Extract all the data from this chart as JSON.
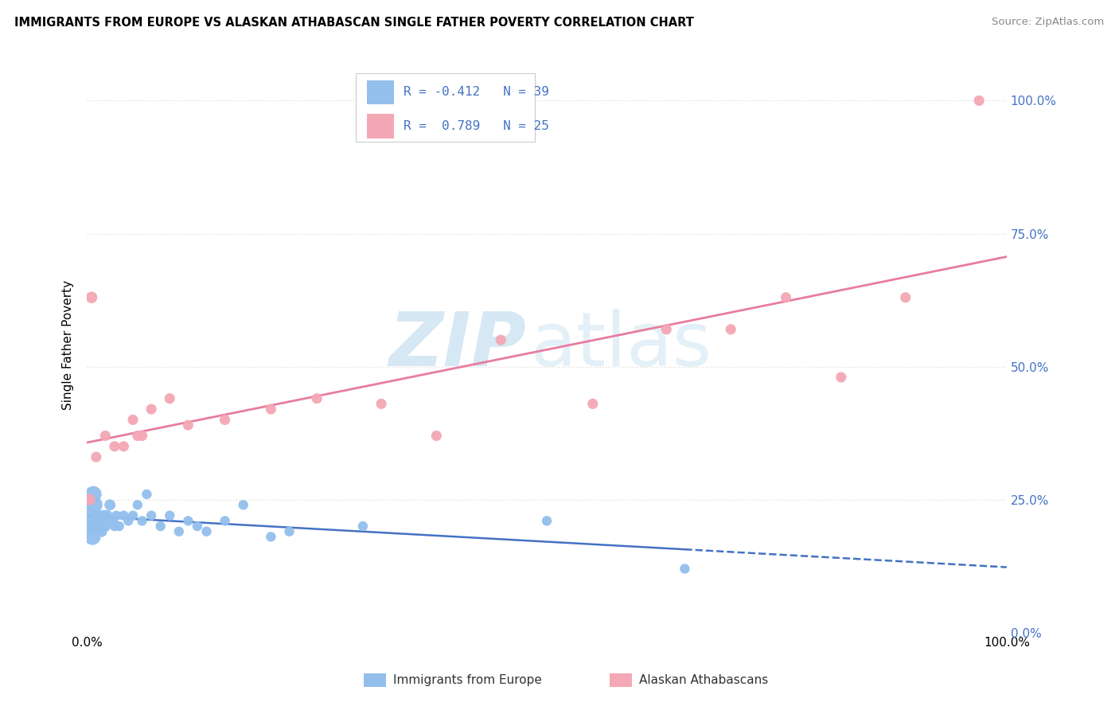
{
  "title": "IMMIGRANTS FROM EUROPE VS ALASKAN ATHABASCAN SINGLE FATHER POVERTY CORRELATION CHART",
  "source_text": "Source: ZipAtlas.com",
  "ylabel": "Single Father Poverty",
  "blue_label": "Immigrants from Europe",
  "pink_label": "Alaskan Athabascans",
  "blue_R": -0.412,
  "blue_N": 39,
  "pink_R": 0.789,
  "pink_N": 25,
  "blue_color": "#92BFEC",
  "pink_color": "#F4A7B4",
  "blue_line_color": "#4472C4",
  "pink_line_color": "#E87CA0",
  "blue_points": [
    [
      0.3,
      22.0
    ],
    [
      0.5,
      20.0
    ],
    [
      0.6,
      18.0
    ],
    [
      0.7,
      26.0
    ],
    [
      0.8,
      24.0
    ],
    [
      0.9,
      20.0
    ],
    [
      1.0,
      22.0
    ],
    [
      1.1,
      20.0
    ],
    [
      1.3,
      22.0
    ],
    [
      1.5,
      21.0
    ],
    [
      1.6,
      19.0
    ],
    [
      1.8,
      22.0
    ],
    [
      2.0,
      20.0
    ],
    [
      2.2,
      22.0
    ],
    [
      2.5,
      24.0
    ],
    [
      2.8,
      21.0
    ],
    [
      3.0,
      20.0
    ],
    [
      3.2,
      22.0
    ],
    [
      3.5,
      20.0
    ],
    [
      4.0,
      22.0
    ],
    [
      4.5,
      21.0
    ],
    [
      5.0,
      22.0
    ],
    [
      5.5,
      24.0
    ],
    [
      6.0,
      21.0
    ],
    [
      6.5,
      26.0
    ],
    [
      7.0,
      22.0
    ],
    [
      8.0,
      20.0
    ],
    [
      9.0,
      22.0
    ],
    [
      10.0,
      19.0
    ],
    [
      11.0,
      21.0
    ],
    [
      12.0,
      20.0
    ],
    [
      13.0,
      19.0
    ],
    [
      15.0,
      21.0
    ],
    [
      17.0,
      24.0
    ],
    [
      20.0,
      18.0
    ],
    [
      22.0,
      19.0
    ],
    [
      30.0,
      20.0
    ],
    [
      50.0,
      21.0
    ],
    [
      65.0,
      12.0
    ]
  ],
  "pink_points": [
    [
      0.3,
      25.0
    ],
    [
      0.5,
      63.0
    ],
    [
      1.0,
      33.0
    ],
    [
      2.0,
      37.0
    ],
    [
      3.0,
      35.0
    ],
    [
      4.0,
      35.0
    ],
    [
      5.0,
      40.0
    ],
    [
      5.5,
      37.0
    ],
    [
      6.0,
      37.0
    ],
    [
      7.0,
      42.0
    ],
    [
      9.0,
      44.0
    ],
    [
      11.0,
      39.0
    ],
    [
      15.0,
      40.0
    ],
    [
      20.0,
      42.0
    ],
    [
      25.0,
      44.0
    ],
    [
      32.0,
      43.0
    ],
    [
      38.0,
      37.0
    ],
    [
      45.0,
      55.0
    ],
    [
      55.0,
      43.0
    ],
    [
      63.0,
      57.0
    ],
    [
      70.0,
      57.0
    ],
    [
      76.0,
      63.0
    ],
    [
      82.0,
      48.0
    ],
    [
      89.0,
      63.0
    ],
    [
      97.0,
      100.0
    ]
  ],
  "xmin": 0,
  "xmax": 100,
  "ymin": 0,
  "ymax": 108,
  "ytick_vals": [
    0,
    25,
    50,
    75,
    100
  ],
  "ytick_labels": [
    "0.0%",
    "25.0%",
    "50.0%",
    "75.0%",
    "100.0%"
  ],
  "xtick_labels": [
    "0.0%",
    "100.0%"
  ],
  "background_color": "#FFFFFF",
  "grid_color": "#E0E0E0",
  "watermark_zip_color": "#C5DFF0",
  "watermark_atlas_color": "#C5DFF0"
}
